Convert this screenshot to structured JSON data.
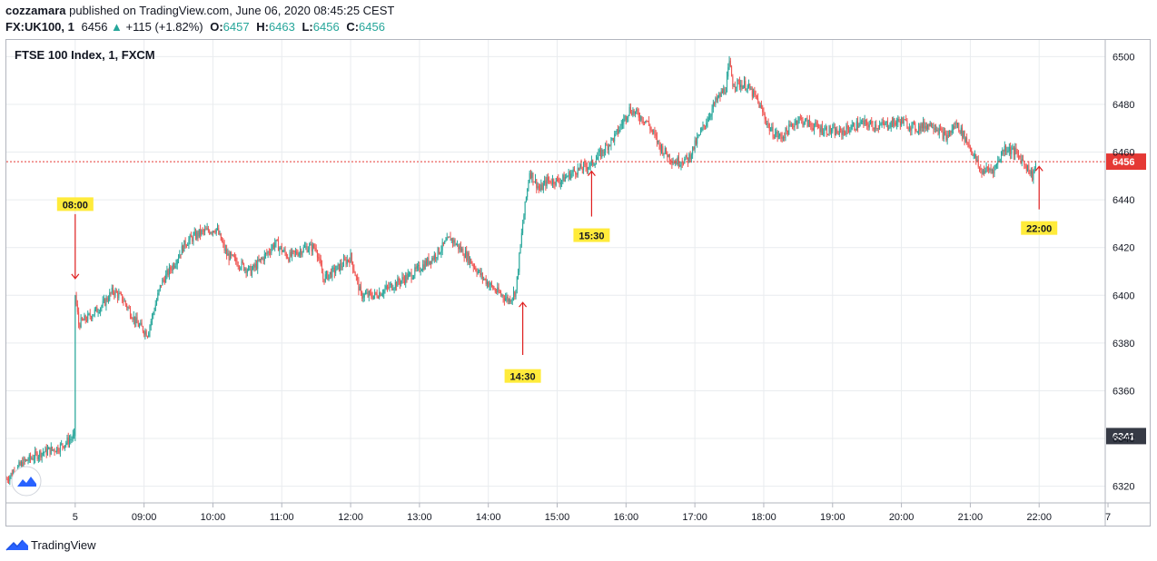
{
  "header": {
    "author": "cozzamara",
    "published_text": "published on TradingView.com, June 06, 2020 08:45:25 CEST",
    "symbol": "FX:UK100, 1",
    "last": "6456",
    "change_arrow": "▲",
    "change": "+115 (+1.82%)",
    "o_label": "O:",
    "o_value": "6457",
    "h_label": "H:",
    "h_value": "6463",
    "l_label": "L:",
    "l_value": "6456",
    "c_label": "C:",
    "c_value": "6456"
  },
  "legend_title": "FTSE 100 Index, 1, FXCM",
  "footer": {
    "brand": "TradingView"
  },
  "colors": {
    "up": "#26a69a",
    "down": "#ef5350",
    "grid": "#e9ecef",
    "annotation_bg": "#ffeb3b",
    "arrow": "#e02020",
    "price_line": "#e53935"
  },
  "chart_data": {
    "type": "candlestick",
    "title": "FTSE 100 Index, 1, FXCM",
    "y_ticks": [
      6320,
      6340,
      6360,
      6380,
      6400,
      6420,
      6440,
      6460,
      6480,
      6500
    ],
    "y_tick_labels": [
      "6320",
      "6340",
      "6360",
      "6380",
      "6400",
      "6420",
      "6440",
      "6460",
      "6480",
      "6500"
    ],
    "ylim": [
      6313,
      6507
    ],
    "x_range": [
      7.0,
      22.96
    ],
    "x_ticks": [
      {
        "x": 8.0,
        "label": "5"
      },
      {
        "x": 9.0,
        "label": "09:00"
      },
      {
        "x": 10.0,
        "label": "10:00"
      },
      {
        "x": 11.0,
        "label": "11:00"
      },
      {
        "x": 12.0,
        "label": "12:00"
      },
      {
        "x": 13.0,
        "label": "13:00"
      },
      {
        "x": 14.0,
        "label": "14:00"
      },
      {
        "x": 15.0,
        "label": "15:00"
      },
      {
        "x": 16.0,
        "label": "16:00"
      },
      {
        "x": 17.0,
        "label": "17:00"
      },
      {
        "x": 18.0,
        "label": "18:00"
      },
      {
        "x": 19.0,
        "label": "19:00"
      },
      {
        "x": 20.0,
        "label": "20:00"
      },
      {
        "x": 21.0,
        "label": "21:00"
      },
      {
        "x": 22.0,
        "label": "22:00"
      },
      {
        "x": 23.0,
        "label": "7"
      }
    ],
    "price_path": [
      [
        7.0,
        6323
      ],
      [
        7.25,
        6330
      ],
      [
        7.5,
        6334
      ],
      [
        7.75,
        6336
      ],
      [
        7.99,
        6341
      ],
      [
        8.0,
        6400
      ],
      [
        8.05,
        6388
      ],
      [
        8.2,
        6391
      ],
      [
        8.4,
        6396
      ],
      [
        8.55,
        6402
      ],
      [
        8.7,
        6398
      ],
      [
        8.9,
        6388
      ],
      [
        9.05,
        6384
      ],
      [
        9.25,
        6405
      ],
      [
        9.45,
        6414
      ],
      [
        9.6,
        6422
      ],
      [
        9.8,
        6426
      ],
      [
        10.05,
        6428
      ],
      [
        10.2,
        6417
      ],
      [
        10.35,
        6414
      ],
      [
        10.55,
        6410
      ],
      [
        10.8,
        6418
      ],
      [
        10.9,
        6422
      ],
      [
        11.1,
        6416
      ],
      [
        11.35,
        6420
      ],
      [
        11.5,
        6420
      ],
      [
        11.6,
        6407
      ],
      [
        11.8,
        6411
      ],
      [
        12.0,
        6416
      ],
      [
        12.15,
        6400
      ],
      [
        12.35,
        6400
      ],
      [
        12.6,
        6404
      ],
      [
        12.9,
        6409
      ],
      [
        13.2,
        6416
      ],
      [
        13.45,
        6424
      ],
      [
        13.7,
        6416
      ],
      [
        13.9,
        6408
      ],
      [
        14.1,
        6402
      ],
      [
        14.3,
        6398
      ],
      [
        14.4,
        6402
      ],
      [
        14.5,
        6430
      ],
      [
        14.6,
        6452
      ],
      [
        14.75,
        6444
      ],
      [
        14.85,
        6448
      ],
      [
        15.05,
        6448
      ],
      [
        15.25,
        6452
      ],
      [
        15.5,
        6455
      ],
      [
        15.65,
        6460
      ],
      [
        15.85,
        6467
      ],
      [
        16.05,
        6478
      ],
      [
        16.15,
        6476
      ],
      [
        16.3,
        6473
      ],
      [
        16.5,
        6462
      ],
      [
        16.7,
        6456
      ],
      [
        16.9,
        6457
      ],
      [
        17.05,
        6466
      ],
      [
        17.3,
        6481
      ],
      [
        17.45,
        6487
      ],
      [
        17.5,
        6497
      ],
      [
        17.55,
        6489
      ],
      [
        17.75,
        6488
      ],
      [
        17.9,
        6482
      ],
      [
        18.1,
        6469
      ],
      [
        18.25,
        6466
      ],
      [
        18.5,
        6474
      ],
      [
        18.8,
        6470
      ],
      [
        19.1,
        6468
      ],
      [
        19.4,
        6472
      ],
      [
        19.7,
        6471
      ],
      [
        20.0,
        6473
      ],
      [
        20.2,
        6470
      ],
      [
        20.45,
        6472
      ],
      [
        20.65,
        6466
      ],
      [
        20.8,
        6472
      ],
      [
        21.0,
        6462
      ],
      [
        21.15,
        6452
      ],
      [
        21.35,
        6453
      ],
      [
        21.5,
        6462
      ],
      [
        21.65,
        6460
      ],
      [
        21.8,
        6455
      ],
      [
        21.9,
        6450
      ],
      [
        21.96,
        6456
      ]
    ],
    "last_price_line": {
      "value": 6456,
      "label": "6456"
    },
    "open_price_marker": {
      "value": 6341,
      "label": "6341"
    },
    "annotations": [
      {
        "label": "08:00",
        "x": 8.0,
        "arrow_from": 6434,
        "arrow_to": 6407,
        "label_y": 6438,
        "direction": "down"
      },
      {
        "label": "14:30",
        "x": 14.5,
        "arrow_from": 6375,
        "arrow_to": 6397,
        "label_y": 6366,
        "direction": "up"
      },
      {
        "label": "15:30",
        "x": 15.5,
        "arrow_from": 6433,
        "arrow_to": 6452,
        "label_y": 6425,
        "direction": "up"
      },
      {
        "label": "22:00",
        "x": 22.0,
        "arrow_from": 6436,
        "arrow_to": 6454,
        "label_y": 6428,
        "direction": "up"
      }
    ]
  }
}
